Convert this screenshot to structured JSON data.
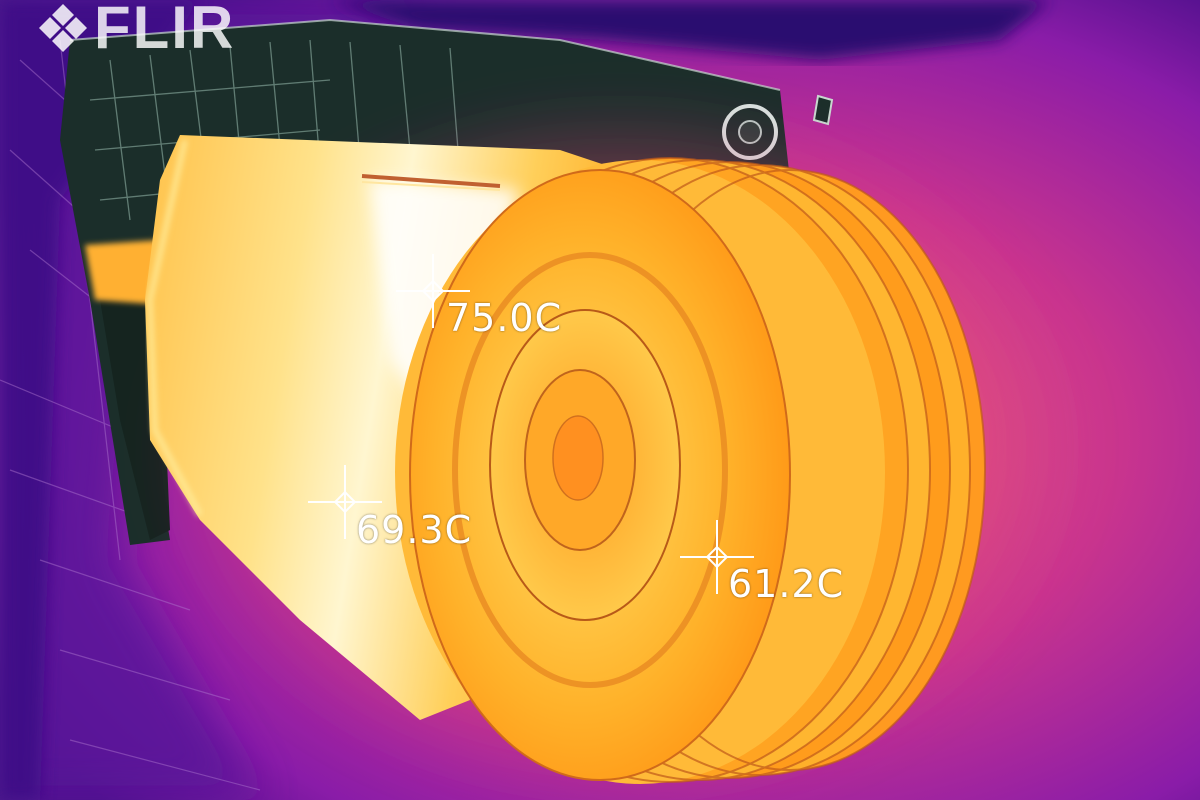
{
  "camera": {
    "brand": "FLIR"
  },
  "palette": {
    "cold": "#3a0a7a",
    "cool": "#8a1ca8",
    "warm": "#e0306a",
    "hot": "#ff8a1a",
    "hottest": "#fff3a8",
    "crosshair": "#ffffff"
  },
  "spots": [
    {
      "id": "spot-1",
      "label": "75.0C"
    },
    {
      "id": "spot-2",
      "label": "69.3C"
    },
    {
      "id": "spot-3",
      "label": "61.2C"
    }
  ]
}
